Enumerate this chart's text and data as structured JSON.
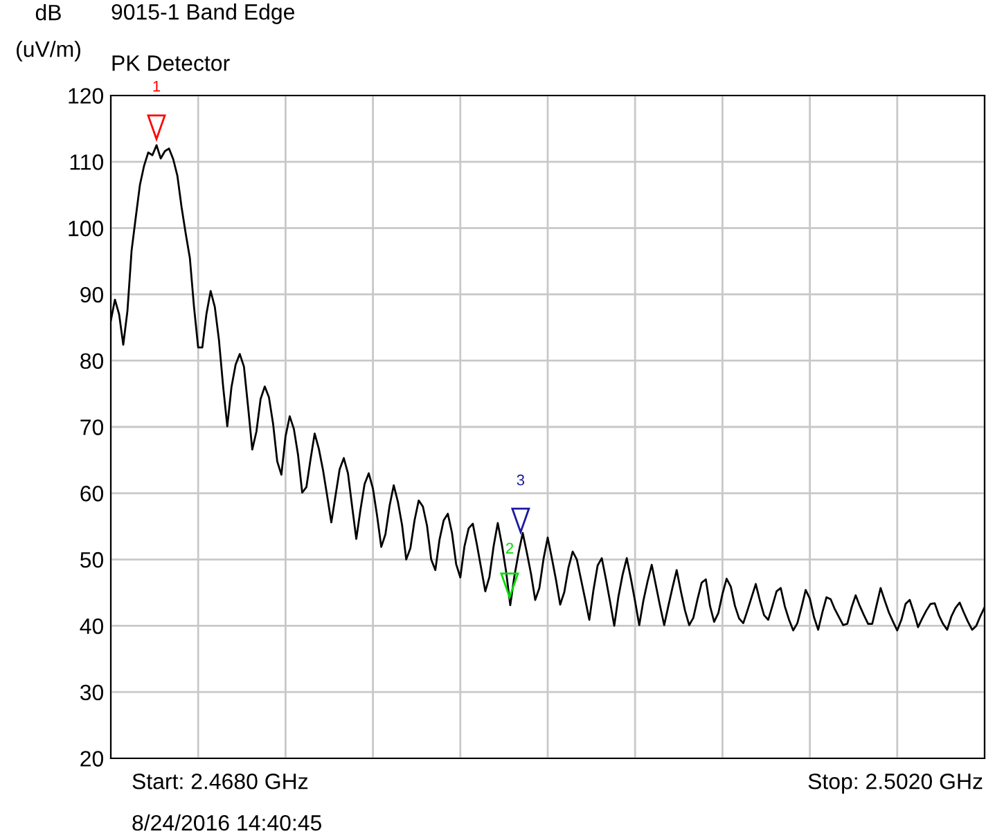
{
  "chart_data": {
    "type": "line",
    "title": "9015-1 Band Edge",
    "subtitle": "PK Detector",
    "ylabel": "dB\n(uV/m)",
    "annotations": [
      "Start: 2.4680 GHz",
      "Stop: 2.5020 GHz",
      "8/24/2016 14:40:45",
      "1",
      "2",
      "3"
    ],
    "categories": [
      null,
      null,
      null,
      null,
      null,
      null,
      null,
      null,
      null,
      null,
      null,
      null,
      null,
      null,
      null,
      null,
      null,
      null,
      null,
      null,
      null,
      null,
      null,
      null,
      null,
      null,
      null,
      null,
      null,
      null,
      null,
      null,
      null,
      null,
      null,
      null,
      null,
      null,
      null,
      null,
      null,
      null,
      null,
      null,
      null,
      null,
      null,
      null,
      null,
      null,
      null,
      null,
      null,
      null,
      null,
      null,
      null,
      null,
      null,
      null,
      null,
      null,
      null,
      null,
      null,
      null,
      null,
      null,
      null,
      null,
      null,
      null,
      null,
      null,
      null,
      null,
      null,
      null,
      null,
      null,
      null,
      null,
      null,
      null,
      null,
      null,
      null,
      null,
      null,
      null,
      null,
      null,
      null,
      null,
      null,
      null,
      null,
      null,
      null,
      null,
      null,
      null,
      null,
      null,
      null,
      null,
      null,
      null,
      null,
      null,
      null,
      null,
      null,
      null,
      null,
      null,
      null,
      null,
      null,
      null,
      null,
      null,
      null,
      null,
      null,
      null,
      null,
      null,
      null,
      null,
      null,
      null,
      null,
      null,
      null,
      null,
      null,
      null,
      null,
      null,
      null,
      null,
      null,
      null,
      null,
      null,
      null,
      null,
      null,
      null,
      null,
      null,
      null,
      null,
      null,
      null,
      null,
      null,
      null,
      null,
      null,
      null,
      null,
      null,
      null,
      null,
      null,
      null,
      null,
      null,
      null,
      null,
      null,
      null,
      null,
      null,
      null,
      null,
      null,
      null,
      null,
      null,
      null,
      null,
      null,
      null,
      null,
      null,
      null,
      null,
      null,
      null,
      null,
      null,
      null,
      null,
      null,
      null,
      null,
      null,
      null,
      null,
      null,
      null,
      null,
      null,
      null,
      null,
      null,
      null,
      null
    ],
    "ylim": [
      20,
      120
    ],
    "yticks": [
      20,
      30,
      40,
      50,
      60,
      70,
      80,
      90,
      100,
      110,
      120
    ],
    "grid": true,
    "series": [
      {
        "color": "#000000",
        "values": [
          86.0,
          89.2,
          87.0,
          82.4,
          87.5,
          96.6,
          101.6,
          106.5,
          109.4,
          111.4,
          111.0,
          112.5,
          110.5,
          111.6,
          112.0,
          110.4,
          107.9,
          103.2,
          99.2,
          95.5,
          88.1,
          82.0,
          82.0,
          87.1,
          90.5,
          88.1,
          83.1,
          76.1,
          70.1,
          76.0,
          79.4,
          81.0,
          79.1,
          73.0,
          66.6,
          69.3,
          74.2,
          76.1,
          74.5,
          70.5,
          64.8,
          62.8,
          68.6,
          71.6,
          69.7,
          65.8,
          60.1,
          60.9,
          65.1,
          69.0,
          66.7,
          63.5,
          59.6,
          55.6,
          59.6,
          63.6,
          65.3,
          63.0,
          58.0,
          53.1,
          57.5,
          61.4,
          63.0,
          60.7,
          56.6,
          51.9,
          53.8,
          58.1,
          61.2,
          58.7,
          55.2,
          50.0,
          51.7,
          55.9,
          58.9,
          58.0,
          55.1,
          50.0,
          48.4,
          53.0,
          55.9,
          56.9,
          54.0,
          49.3,
          47.3,
          52.0,
          54.7,
          55.4,
          52.2,
          48.7,
          45.2,
          47.4,
          52.0,
          55.5,
          52.2,
          48.2,
          43.1,
          47.5,
          51.0,
          54.0,
          51.0,
          47.8,
          43.9,
          45.7,
          50.1,
          53.3,
          50.2,
          46.9,
          43.2,
          45.1,
          48.8,
          51.2,
          50.0,
          47.0,
          44.0,
          40.9,
          45.4,
          49.1,
          50.2,
          47.0,
          43.6,
          40.0,
          44.4,
          47.7,
          50.2,
          47.1,
          43.7,
          40.1,
          43.8,
          46.7,
          49.2,
          46.1,
          43.0,
          40.1,
          43.0,
          45.8,
          48.4,
          45.2,
          42.3,
          40.1,
          41.2,
          44.0,
          46.5,
          47.0,
          43.0,
          40.6,
          41.9,
          44.8,
          47.1,
          45.9,
          43.0,
          41.1,
          40.4,
          42.3,
          44.3,
          46.3,
          43.8,
          41.6,
          40.9,
          43.0,
          45.2,
          45.7,
          42.9,
          40.9,
          39.3,
          40.4,
          42.8,
          45.4,
          44.1,
          41.3,
          39.4,
          42.0,
          44.3,
          44.0,
          42.5,
          41.3,
          40.1,
          40.3,
          42.7,
          44.6,
          43.0,
          41.6,
          40.3,
          40.3,
          43.0,
          45.7,
          43.8,
          42.0,
          40.6,
          39.3,
          40.9,
          43.3,
          43.9,
          42.0,
          39.8,
          41.1,
          42.3,
          43.3,
          43.4,
          41.6,
          40.3,
          39.4,
          41.4,
          42.7,
          43.5,
          42.0,
          40.6,
          39.4,
          40.0,
          41.5,
          42.8
        ]
      }
    ]
  }
}
